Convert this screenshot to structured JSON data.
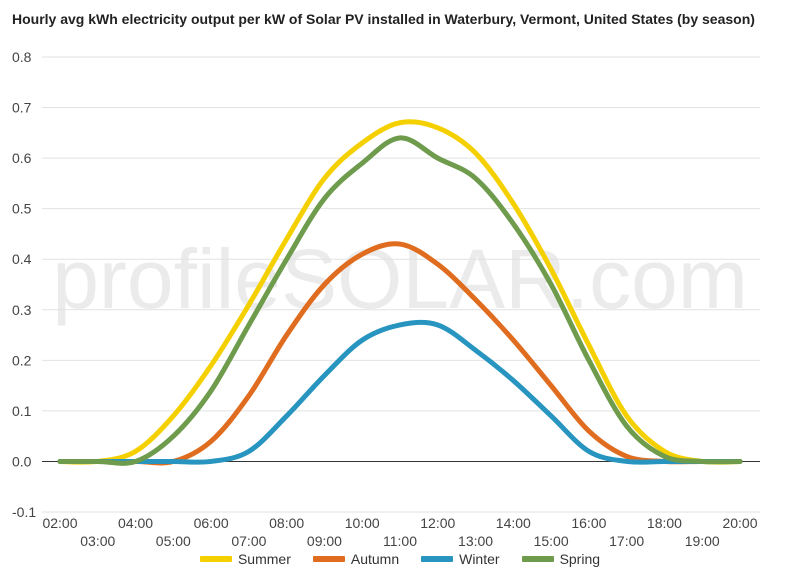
{
  "chart_data": {
    "type": "line",
    "title": "Hourly avg kWh electricity output per kW of Solar PV installed in Waterbury, Vermont, United States (by season)",
    "watermark": "profileSOLAR.com",
    "x_ticks_top": [
      "02:00",
      "04:00",
      "06:00",
      "08:00",
      "10:00",
      "12:00",
      "14:00",
      "16:00",
      "18:00",
      "20:00"
    ],
    "x_ticks_bottom": [
      "03:00",
      "05:00",
      "07:00",
      "09:00",
      "11:00",
      "13:00",
      "15:00",
      "17:00",
      "19:00"
    ],
    "y_ticks": [
      "0.8",
      "0.7",
      "0.6",
      "0.5",
      "0.4",
      "0.3",
      "0.2",
      "0.1",
      "0.0",
      "-0.1"
    ],
    "ylim": [
      -0.1,
      0.8
    ],
    "xlim": [
      2,
      20
    ],
    "x": [
      2,
      3,
      4,
      5,
      6,
      7,
      8,
      9,
      10,
      11,
      12,
      13,
      14,
      15,
      16,
      17,
      18,
      19,
      20
    ],
    "legend_position": "bottom",
    "series": [
      {
        "name": "Summer",
        "color": "#f5d000",
        "values": [
          0.0,
          0.0,
          0.02,
          0.09,
          0.19,
          0.31,
          0.44,
          0.56,
          0.63,
          0.67,
          0.66,
          0.61,
          0.51,
          0.38,
          0.23,
          0.09,
          0.02,
          0.0,
          0.0
        ]
      },
      {
        "name": "Autumn",
        "color": "#e06d1f",
        "values": [
          0.0,
          0.0,
          0.0,
          0.0,
          0.04,
          0.13,
          0.25,
          0.35,
          0.41,
          0.43,
          0.39,
          0.32,
          0.24,
          0.15,
          0.06,
          0.01,
          0.0,
          0.0,
          0.0
        ]
      },
      {
        "name": "Winter",
        "color": "#2795c0",
        "values": [
          0.0,
          0.0,
          0.0,
          0.0,
          0.0,
          0.02,
          0.09,
          0.17,
          0.24,
          0.27,
          0.27,
          0.22,
          0.16,
          0.09,
          0.02,
          0.0,
          0.0,
          0.0,
          0.0
        ]
      },
      {
        "name": "Spring",
        "color": "#6e9b4c",
        "values": [
          0.0,
          0.0,
          0.0,
          0.05,
          0.14,
          0.27,
          0.4,
          0.52,
          0.59,
          0.64,
          0.6,
          0.56,
          0.47,
          0.35,
          0.2,
          0.07,
          0.01,
          0.0,
          0.0
        ]
      }
    ]
  }
}
